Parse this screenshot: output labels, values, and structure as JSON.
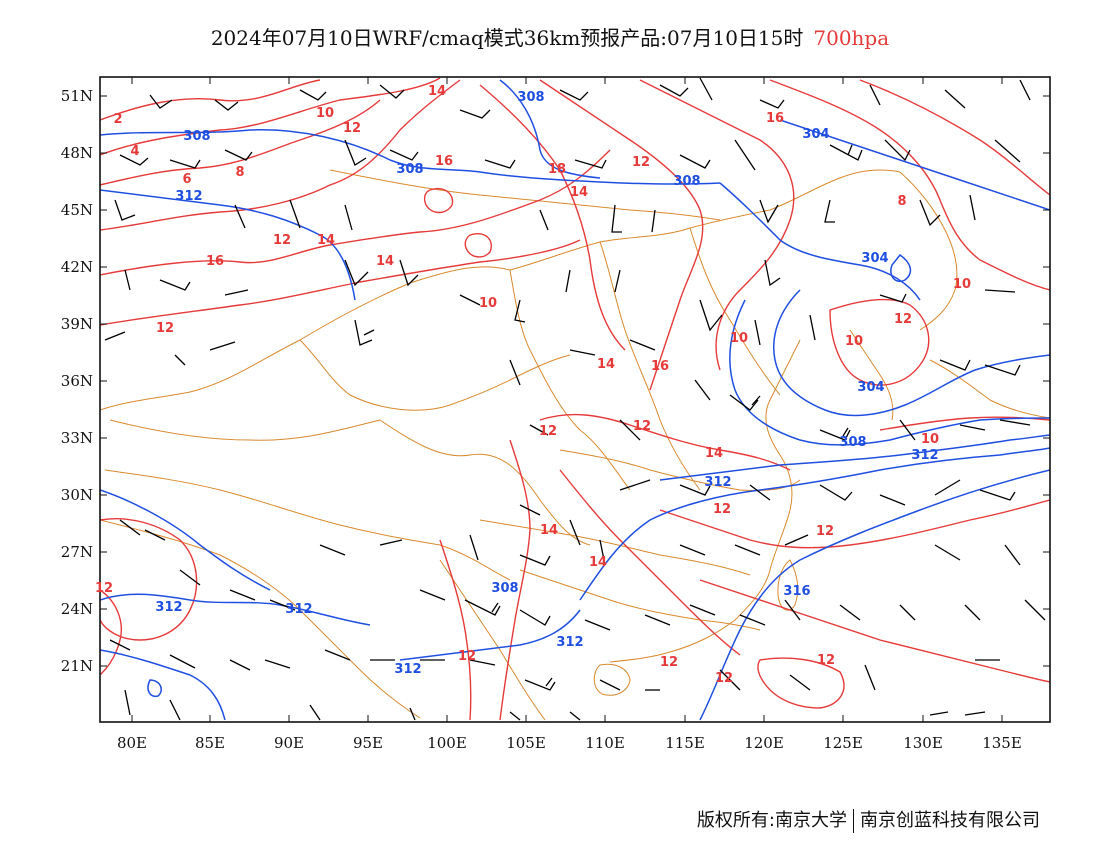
{
  "header": {
    "title": "2024年07月10日WRF/cmaq模式36km预报产品:07月10日15时",
    "level": "700hpa"
  },
  "axes": {
    "lat_labels": [
      "51N",
      "48N",
      "45N",
      "42N",
      "39N",
      "36N",
      "33N",
      "30N",
      "27N",
      "24N",
      "21N"
    ],
    "lon_labels": [
      "80E",
      "85E",
      "90E",
      "95E",
      "100E",
      "105E",
      "110E",
      "115E",
      "120E",
      "125E",
      "130E",
      "135E"
    ]
  },
  "colors": {
    "temperature": "#e63a3a",
    "height": "#1f4fe0",
    "border": "#d9892e",
    "wind": "#000000"
  },
  "footer": {
    "left": "版权所有:南京大学",
    "right": "南京创蓝科技有限公司"
  },
  "temperature_labels": [
    "2",
    "4",
    "6",
    "8",
    "10",
    "12",
    "14",
    "16",
    "18",
    "14",
    "12",
    "16",
    "12",
    "14",
    "16",
    "14",
    "10",
    "12",
    "14",
    "16",
    "12",
    "12",
    "14",
    "12",
    "14",
    "12",
    "10",
    "10",
    "8",
    "10",
    "10",
    "12",
    "12",
    "12",
    "12",
    "12",
    "12",
    "14"
  ],
  "height_labels": [
    "308",
    "308",
    "312",
    "308",
    "308",
    "304",
    "304",
    "304",
    "308",
    "312",
    "312",
    "316",
    "312",
    "308",
    "312",
    "312",
    "312"
  ]
}
